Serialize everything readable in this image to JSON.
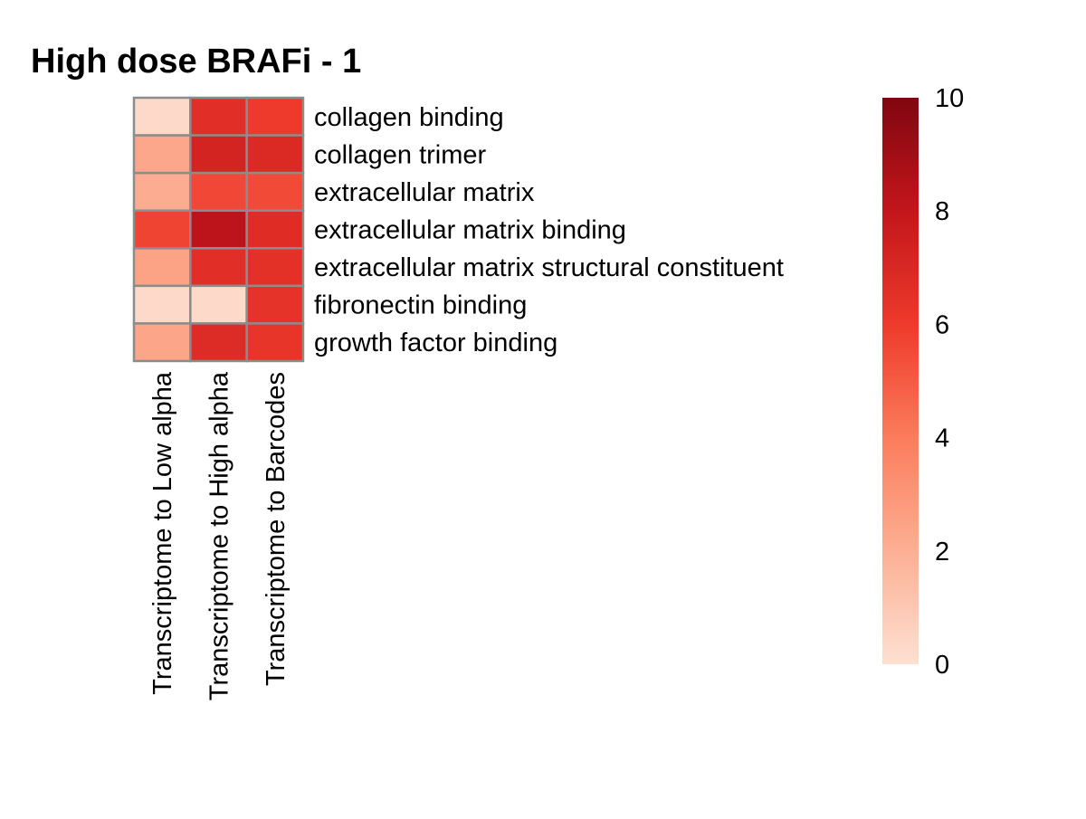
{
  "chart_data": {
    "type": "heatmap",
    "title": "High dose BRAFi - 1",
    "rows": [
      "collagen binding",
      "collagen trimer",
      "extracellular matrix",
      "extracellular matrix binding",
      "extracellular matrix structural constituent",
      "fibronectin binding",
      "growth factor binding"
    ],
    "columns": [
      "Transcriptome to Low alpha",
      "Transcriptome to High alpha",
      "Transcriptome to Barcodes"
    ],
    "values": [
      [
        0.3,
        6.6,
        6.0
      ],
      [
        2.3,
        7.2,
        6.9
      ],
      [
        2.1,
        5.6,
        5.5
      ],
      [
        5.7,
        8.2,
        6.7
      ],
      [
        2.5,
        6.6,
        6.5
      ],
      [
        0.3,
        0.3,
        6.4
      ],
      [
        2.4,
        6.8,
        6.3
      ]
    ],
    "color_scale": {
      "min": 0,
      "max": 10,
      "ticks": [
        0,
        2,
        4,
        6,
        8,
        10
      ],
      "stops": [
        {
          "value": 0,
          "color": "#fde0d2"
        },
        {
          "value": 2,
          "color": "#fcaf93"
        },
        {
          "value": 4,
          "color": "#fb7c5c"
        },
        {
          "value": 6,
          "color": "#ee3a2c"
        },
        {
          "value": 8,
          "color": "#c3161b"
        },
        {
          "value": 10,
          "color": "#800610"
        }
      ]
    },
    "cell_border_color": "#8c8c8c",
    "legend_position": "right"
  }
}
